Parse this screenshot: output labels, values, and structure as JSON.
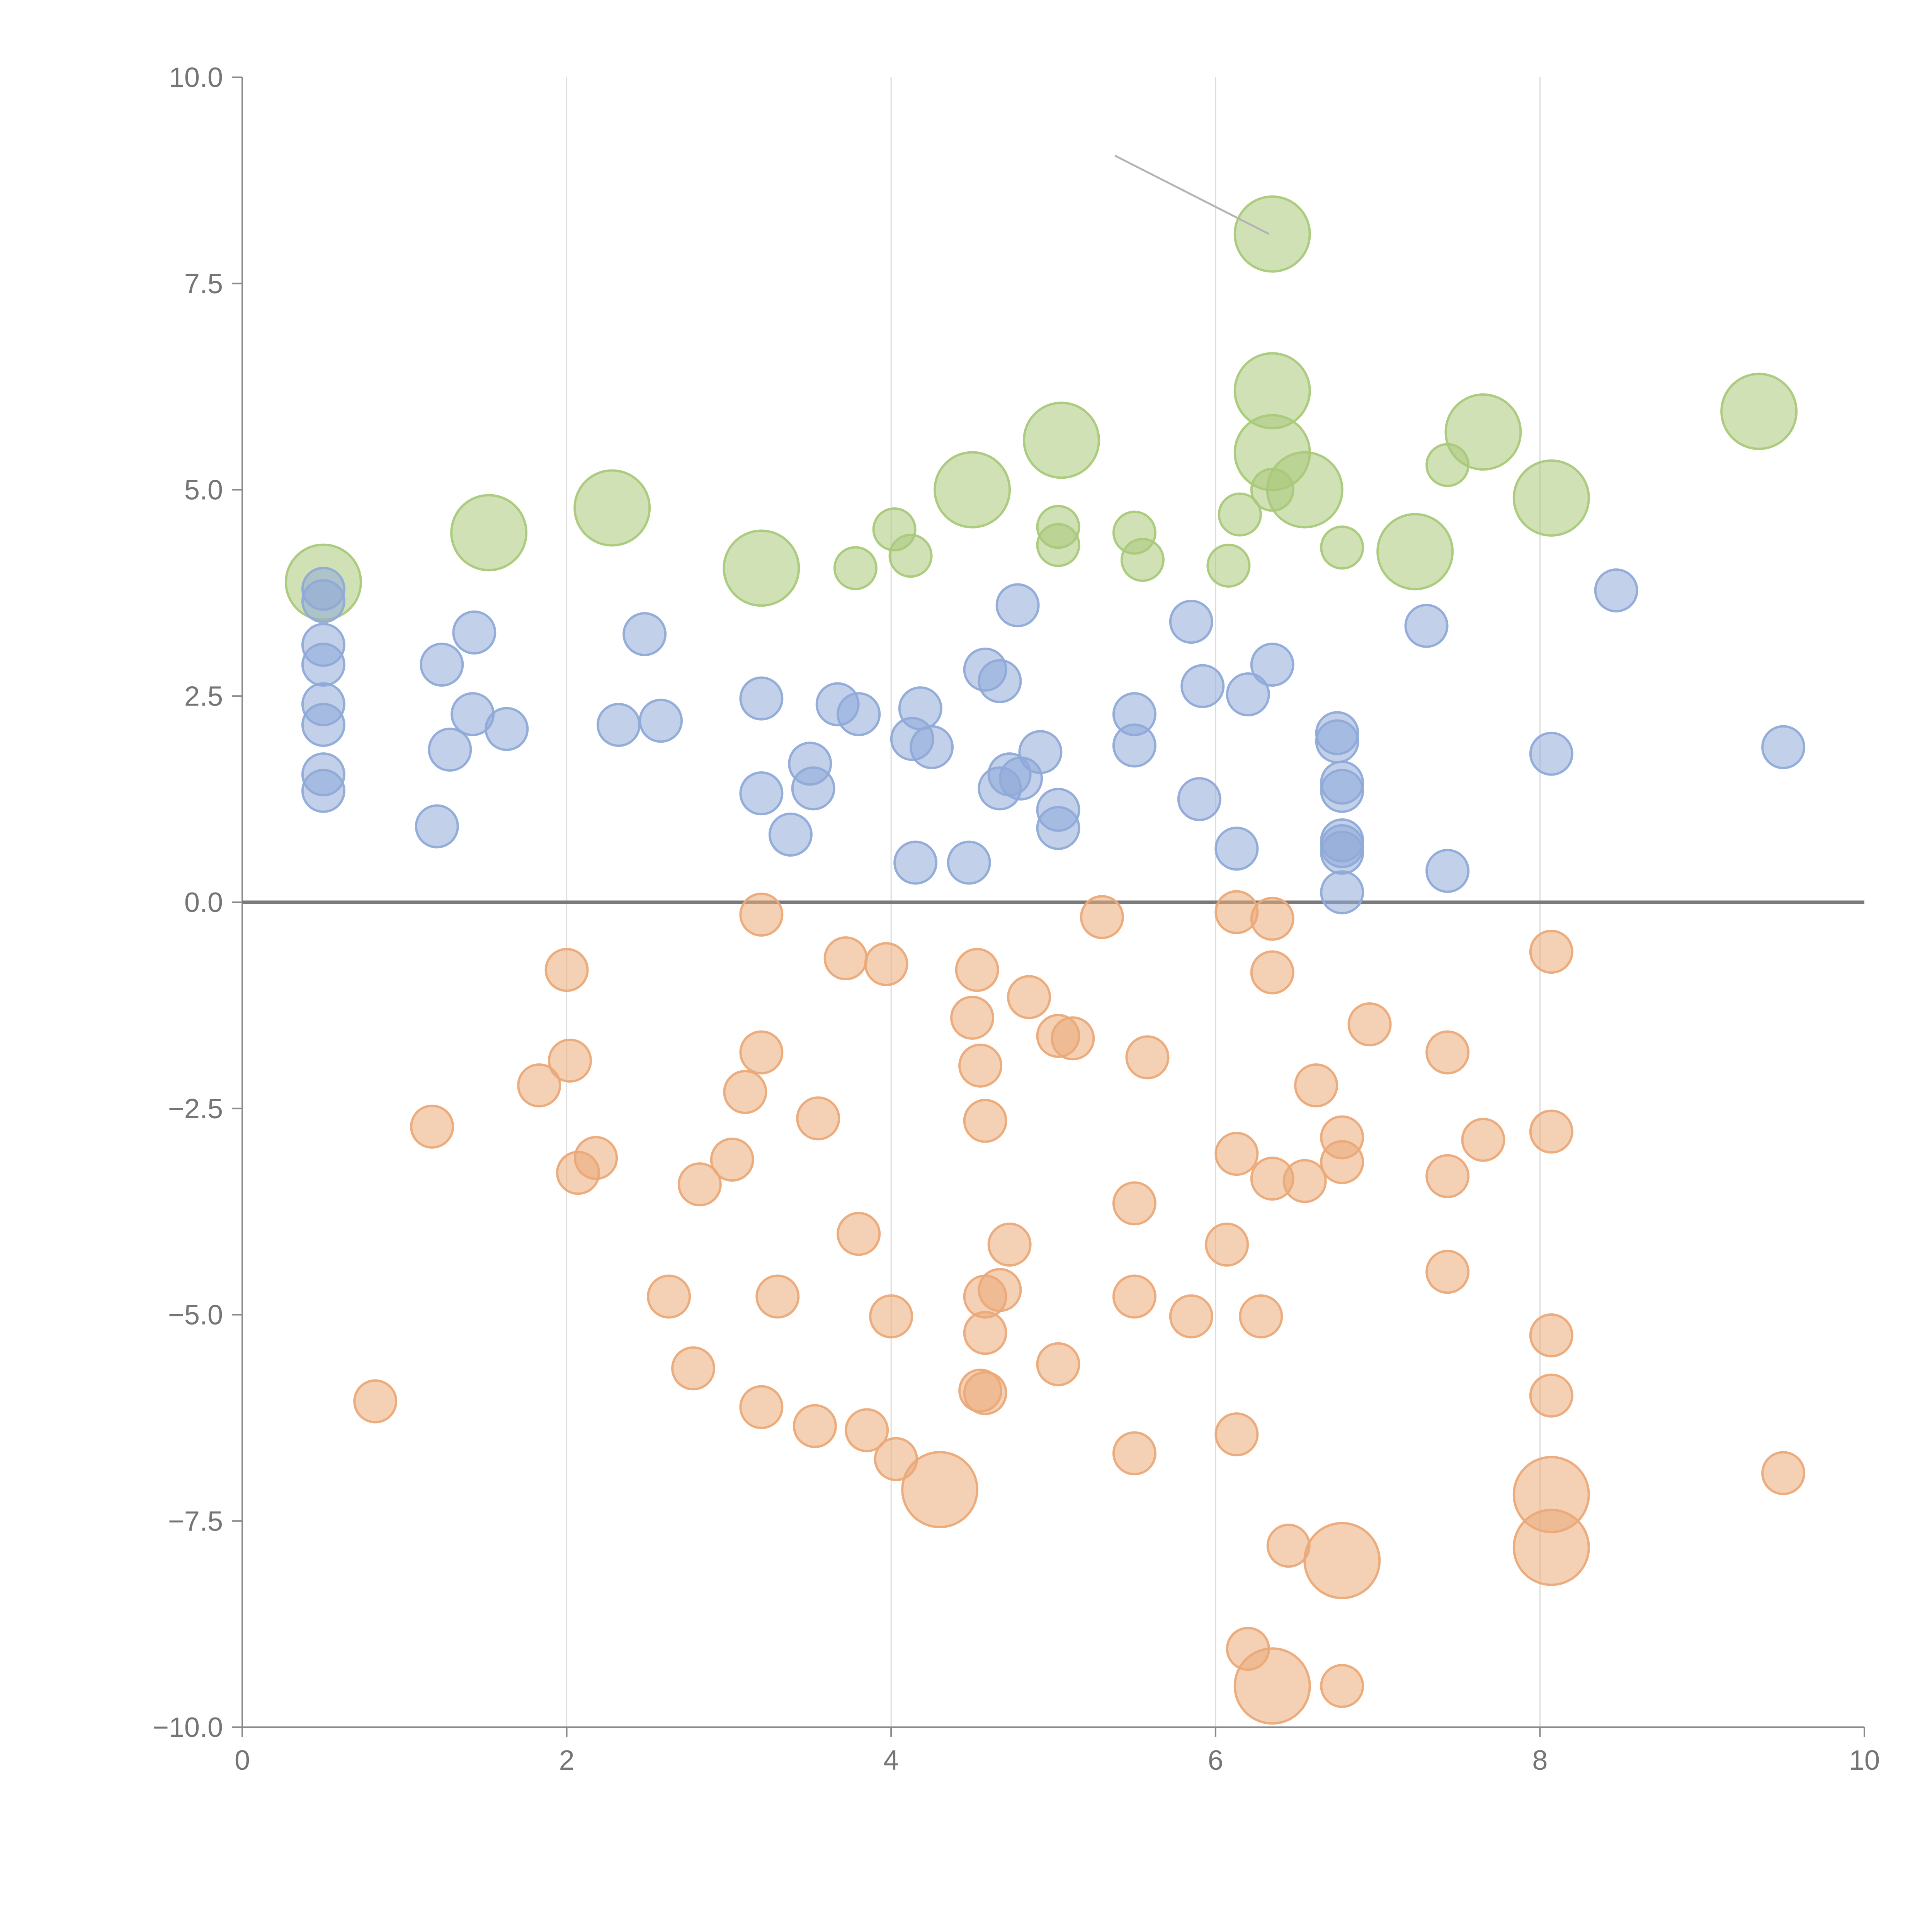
{
  "chart_data": {
    "type": "scatter",
    "title": "",
    "xlabel": "",
    "ylabel": "",
    "xlim": [
      0,
      10
    ],
    "ylim": [
      -10,
      10
    ],
    "grid": "vertical",
    "zero_line": true,
    "x_ticks": [
      0,
      2,
      4,
      6,
      8,
      10
    ],
    "y_ticks": [
      -10,
      -7.5,
      -5,
      -2.5,
      0,
      2.5,
      5,
      7.5,
      10
    ],
    "x_tick_labels": [
      "0",
      "2",
      "4",
      "6",
      "8",
      "10"
    ],
    "y_tick_labels": [
      "−10.0",
      "−7.5",
      "−5.0",
      "−2.5",
      "0.0",
      "2.5",
      "5.0",
      "7.5",
      "10.0"
    ],
    "annotation_leader": {
      "from": [
        5.38,
        9.05
      ],
      "to": [
        6.33,
        8.1
      ]
    },
    "series": [
      {
        "name": "green",
        "color": "#a9c97a",
        "points": [
          {
            "x": 6.35,
            "y": 8.1,
            "size": "large"
          },
          {
            "x": 6.35,
            "y": 6.2,
            "size": "large"
          },
          {
            "x": 6.35,
            "y": 5.45,
            "size": "large"
          },
          {
            "x": 6.55,
            "y": 5.0,
            "size": "large"
          },
          {
            "x": 5.05,
            "y": 5.6,
            "size": "large"
          },
          {
            "x": 7.65,
            "y": 5.7,
            "size": "large"
          },
          {
            "x": 9.35,
            "y": 5.95,
            "size": "large"
          },
          {
            "x": 8.07,
            "y": 4.9,
            "size": "large"
          },
          {
            "x": 7.23,
            "y": 4.25,
            "size": "large"
          },
          {
            "x": 4.5,
            "y": 5.0,
            "size": "large"
          },
          {
            "x": 3.2,
            "y": 4.05,
            "size": "large"
          },
          {
            "x": 2.28,
            "y": 4.78,
            "size": "large"
          },
          {
            "x": 1.52,
            "y": 4.48,
            "size": "large"
          },
          {
            "x": 0.5,
            "y": 3.88,
            "size": "large"
          },
          {
            "x": 7.43,
            "y": 5.3,
            "size": "small"
          },
          {
            "x": 6.35,
            "y": 5.0,
            "size": "small"
          },
          {
            "x": 6.15,
            "y": 4.7,
            "size": "small"
          },
          {
            "x": 6.08,
            "y": 4.08,
            "size": "small"
          },
          {
            "x": 6.78,
            "y": 4.3,
            "size": "small"
          },
          {
            "x": 5.5,
            "y": 4.48,
            "size": "small"
          },
          {
            "x": 5.55,
            "y": 4.15,
            "size": "small"
          },
          {
            "x": 5.03,
            "y": 4.55,
            "size": "small"
          },
          {
            "x": 5.03,
            "y": 4.33,
            "size": "small"
          },
          {
            "x": 4.02,
            "y": 4.52,
            "size": "small"
          },
          {
            "x": 4.12,
            "y": 4.2,
            "size": "small"
          },
          {
            "x": 3.78,
            "y": 4.05,
            "size": "small"
          }
        ]
      },
      {
        "name": "blue",
        "color": "#8faad8",
        "points": [
          {
            "x": 0.5,
            "y": 3.8
          },
          {
            "x": 0.5,
            "y": 3.65
          },
          {
            "x": 0.5,
            "y": 3.12
          },
          {
            "x": 0.5,
            "y": 2.88
          },
          {
            "x": 0.5,
            "y": 2.4
          },
          {
            "x": 0.5,
            "y": 2.15
          },
          {
            "x": 0.5,
            "y": 1.55
          },
          {
            "x": 0.5,
            "y": 1.35
          },
          {
            "x": 1.2,
            "y": 0.92
          },
          {
            "x": 1.23,
            "y": 2.88
          },
          {
            "x": 1.28,
            "y": 1.85
          },
          {
            "x": 1.42,
            "y": 2.28
          },
          {
            "x": 1.43,
            "y": 3.27
          },
          {
            "x": 1.63,
            "y": 2.1
          },
          {
            "x": 2.32,
            "y": 2.15
          },
          {
            "x": 2.48,
            "y": 3.25
          },
          {
            "x": 2.58,
            "y": 2.2
          },
          {
            "x": 3.2,
            "y": 2.47
          },
          {
            "x": 3.2,
            "y": 1.32
          },
          {
            "x": 3.38,
            "y": 0.82
          },
          {
            "x": 3.5,
            "y": 1.68
          },
          {
            "x": 3.52,
            "y": 1.38
          },
          {
            "x": 3.67,
            "y": 2.4
          },
          {
            "x": 3.8,
            "y": 2.28
          },
          {
            "x": 4.15,
            "y": 0.48
          },
          {
            "x": 4.13,
            "y": 1.98
          },
          {
            "x": 4.18,
            "y": 2.35
          },
          {
            "x": 4.25,
            "y": 1.88
          },
          {
            "x": 4.48,
            "y": 0.48
          },
          {
            "x": 4.58,
            "y": 2.82
          },
          {
            "x": 4.67,
            "y": 2.68
          },
          {
            "x": 4.67,
            "y": 1.38
          },
          {
            "x": 4.73,
            "y": 1.55
          },
          {
            "x": 4.8,
            "y": 1.5
          },
          {
            "x": 4.78,
            "y": 3.6
          },
          {
            "x": 4.92,
            "y": 1.82
          },
          {
            "x": 5.03,
            "y": 1.12
          },
          {
            "x": 5.03,
            "y": 0.9
          },
          {
            "x": 5.5,
            "y": 2.28
          },
          {
            "x": 5.5,
            "y": 1.9
          },
          {
            "x": 5.85,
            "y": 3.4
          },
          {
            "x": 5.9,
            "y": 1.25
          },
          {
            "x": 5.92,
            "y": 2.62
          },
          {
            "x": 6.13,
            "y": 0.65
          },
          {
            "x": 6.2,
            "y": 2.52
          },
          {
            "x": 6.35,
            "y": 2.88
          },
          {
            "x": 6.75,
            "y": 2.05
          },
          {
            "x": 6.75,
            "y": 1.95
          },
          {
            "x": 6.78,
            "y": 1.45
          },
          {
            "x": 6.78,
            "y": 1.35
          },
          {
            "x": 6.78,
            "y": 0.75
          },
          {
            "x": 6.78,
            "y": 0.68
          },
          {
            "x": 6.78,
            "y": 0.6
          },
          {
            "x": 6.78,
            "y": 0.12
          },
          {
            "x": 7.3,
            "y": 3.35
          },
          {
            "x": 7.43,
            "y": 0.38
          },
          {
            "x": 8.07,
            "y": 1.8
          },
          {
            "x": 8.47,
            "y": 3.78
          },
          {
            "x": 9.5,
            "y": 1.88
          }
        ]
      },
      {
        "name": "orange",
        "color": "#eba978",
        "points": [
          {
            "x": 4.3,
            "y": -7.12,
            "size": "large"
          },
          {
            "x": 6.78,
            "y": -7.98,
            "size": "large"
          },
          {
            "x": 8.07,
            "y": -7.18,
            "size": "large"
          },
          {
            "x": 8.07,
            "y": -7.82,
            "size": "large"
          },
          {
            "x": 6.35,
            "y": -9.5,
            "size": "large"
          },
          {
            "x": 0.82,
            "y": -6.05
          },
          {
            "x": 1.17,
            "y": -2.72
          },
          {
            "x": 1.83,
            "y": -2.22
          },
          {
            "x": 2.0,
            "y": -0.82
          },
          {
            "x": 2.02,
            "y": -1.92
          },
          {
            "x": 2.07,
            "y": -3.28
          },
          {
            "x": 2.18,
            "y": -3.1
          },
          {
            "x": 2.63,
            "y": -4.78
          },
          {
            "x": 2.78,
            "y": -5.65
          },
          {
            "x": 2.82,
            "y": -3.42
          },
          {
            "x": 3.02,
            "y": -3.12
          },
          {
            "x": 3.1,
            "y": -2.3
          },
          {
            "x": 3.2,
            "y": -1.82
          },
          {
            "x": 3.2,
            "y": -6.12
          },
          {
            "x": 3.2,
            "y": -0.15
          },
          {
            "x": 3.3,
            "y": -4.78
          },
          {
            "x": 3.53,
            "y": -6.35
          },
          {
            "x": 3.55,
            "y": -2.62
          },
          {
            "x": 3.72,
            "y": -0.68
          },
          {
            "x": 3.8,
            "y": -4.02
          },
          {
            "x": 3.85,
            "y": -6.4
          },
          {
            "x": 3.97,
            "y": -0.75
          },
          {
            "x": 4.0,
            "y": -5.02
          },
          {
            "x": 4.03,
            "y": -6.75
          },
          {
            "x": 4.5,
            "y": -1.4
          },
          {
            "x": 4.53,
            "y": -0.82
          },
          {
            "x": 4.55,
            "y": -1.98
          },
          {
            "x": 4.55,
            "y": -5.92
          },
          {
            "x": 4.58,
            "y": -5.95
          },
          {
            "x": 4.58,
            "y": -2.65
          },
          {
            "x": 4.58,
            "y": -4.78
          },
          {
            "x": 4.58,
            "y": -5.22
          },
          {
            "x": 4.67,
            "y": -4.7
          },
          {
            "x": 4.73,
            "y": -4.15
          },
          {
            "x": 4.85,
            "y": -1.15
          },
          {
            "x": 5.03,
            "y": -1.62
          },
          {
            "x": 5.12,
            "y": -1.65
          },
          {
            "x": 5.03,
            "y": -5.6
          },
          {
            "x": 5.3,
            "y": -0.18
          },
          {
            "x": 5.5,
            "y": -3.65
          },
          {
            "x": 5.5,
            "y": -4.78
          },
          {
            "x": 5.5,
            "y": -6.68
          },
          {
            "x": 5.58,
            "y": -1.88
          },
          {
            "x": 5.85,
            "y": -5.02
          },
          {
            "x": 6.07,
            "y": -4.15
          },
          {
            "x": 6.13,
            "y": -0.12
          },
          {
            "x": 6.13,
            "y": -3.05
          },
          {
            "x": 6.13,
            "y": -6.45
          },
          {
            "x": 6.2,
            "y": -9.05
          },
          {
            "x": 6.28,
            "y": -5.02
          },
          {
            "x": 6.35,
            "y": -0.2
          },
          {
            "x": 6.35,
            "y": -0.85
          },
          {
            "x": 6.35,
            "y": -3.35
          },
          {
            "x": 6.45,
            "y": -7.8
          },
          {
            "x": 6.55,
            "y": -3.38
          },
          {
            "x": 6.62,
            "y": -2.22
          },
          {
            "x": 6.78,
            "y": -2.85
          },
          {
            "x": 6.78,
            "y": -3.15
          },
          {
            "x": 6.78,
            "y": -9.5
          },
          {
            "x": 6.95,
            "y": -1.48
          },
          {
            "x": 7.43,
            "y": -1.82
          },
          {
            "x": 7.43,
            "y": -3.32
          },
          {
            "x": 7.43,
            "y": -4.48
          },
          {
            "x": 7.65,
            "y": -2.88
          },
          {
            "x": 8.07,
            "y": -0.6
          },
          {
            "x": 8.07,
            "y": -2.78
          },
          {
            "x": 8.07,
            "y": -5.25
          },
          {
            "x": 8.07,
            "y": -5.98
          },
          {
            "x": 9.5,
            "y": -6.92
          }
        ]
      }
    ]
  }
}
